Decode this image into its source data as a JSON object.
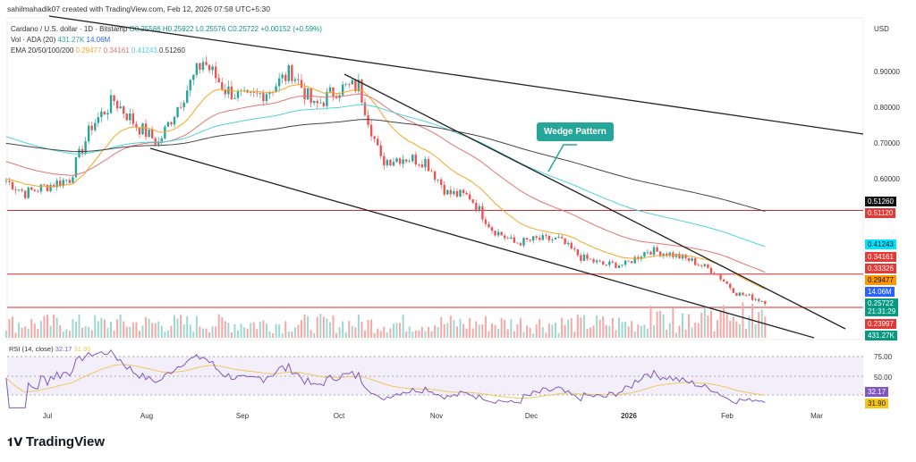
{
  "header": {
    "credit": "sahilmahadik07 created with TradingView.com, Feb 12, 2026 07:58 UTC+5:30"
  },
  "legend": {
    "symbol": "Cardano / U.S. dollar · 1D · Bitstamp",
    "o": "O0.25586",
    "h": "H0.25922",
    "l": "L0.25576",
    "c": "C0.25722",
    "chg": "+0.00152 (+0.59%)",
    "vol_label": "Vol · ADA (20)",
    "vol1": "431.27K",
    "vol2": "14.06M",
    "ema_label": "EMA 20/50/100/200",
    "ema20": "0.29477",
    "ema50": "0.34161",
    "ema100": "0.41243",
    "ema200": "0.51260"
  },
  "currency": "USD",
  "annotation": "Wedge Pattern",
  "colors": {
    "up": "#26a69a",
    "down": "#ef5350",
    "ema20": "#f5a623",
    "ema50": "#e57373",
    "ema100": "#4dd0e1",
    "ema200": "#444444",
    "rsi": "#7e57c2",
    "rsi_ma": "#f0c75e"
  },
  "price_badges": [
    {
      "text": "0.51260",
      "bg": "#111111"
    },
    {
      "text": "0.51120",
      "bg": "#e53935"
    },
    {
      "text": "0.41243",
      "bg": "#00e5ff",
      "fg": "#111"
    },
    {
      "text": "0.34161",
      "bg": "#e53935"
    },
    {
      "text": "0.33326",
      "bg": "#e53935"
    },
    {
      "text": "0.29477",
      "bg": "#ff9800",
      "fg": "#111"
    },
    {
      "text": "14.06M",
      "bg": "#2962ff"
    },
    {
      "text": "0.25722\n21:31:29",
      "bg": "#089981"
    },
    {
      "text": "0.23997",
      "bg": "#e53935"
    },
    {
      "text": "431.27K",
      "bg": "#089981"
    }
  ],
  "rsi": {
    "label": "RSI (14, close)",
    "v1": "32.17",
    "v2": "31.90",
    "ticks": [
      "75.00",
      "50.00"
    ]
  },
  "logo": "TradingView",
  "chart_data": {
    "type": "candlestick",
    "y_ticks": [
      0.9,
      0.8,
      0.7,
      0.6
    ],
    "y_tick_labels": [
      "0.90000",
      "0.80000",
      "0.70000",
      "0.60000"
    ],
    "x_ticks": [
      "Jul",
      "Aug",
      "Sep",
      "Oct",
      "Nov",
      "Dec",
      "2026",
      "Feb",
      "Mar"
    ],
    "horizontal_levels": [
      0.5112,
      0.33326,
      0.23997
    ],
    "weekly_close": {
      "dates": [
        "2025-06-17",
        "2025-06-24",
        "2025-07-01",
        "2025-07-08",
        "2025-07-15",
        "2025-07-22",
        "2025-07-29",
        "2025-08-05",
        "2025-08-12",
        "2025-08-19",
        "2025-08-26",
        "2025-09-02",
        "2025-09-09",
        "2025-09-16",
        "2025-09-23",
        "2025-09-30",
        "2025-10-07",
        "2025-10-14",
        "2025-10-21",
        "2025-10-28",
        "2025-11-04",
        "2025-11-11",
        "2025-11-18",
        "2025-11-25",
        "2025-12-02",
        "2025-12-09",
        "2025-12-16",
        "2025-12-23",
        "2025-12-30",
        "2026-01-06",
        "2026-01-13",
        "2026-01-20",
        "2026-01-27",
        "2026-02-03",
        "2026-02-12"
      ],
      "close": [
        0.6,
        0.56,
        0.58,
        0.6,
        0.75,
        0.82,
        0.75,
        0.7,
        0.82,
        0.93,
        0.85,
        0.82,
        0.85,
        0.9,
        0.8,
        0.85,
        0.86,
        0.65,
        0.66,
        0.65,
        0.56,
        0.55,
        0.46,
        0.42,
        0.43,
        0.43,
        0.38,
        0.36,
        0.36,
        0.4,
        0.39,
        0.37,
        0.34,
        0.28,
        0.257
      ]
    }
  }
}
